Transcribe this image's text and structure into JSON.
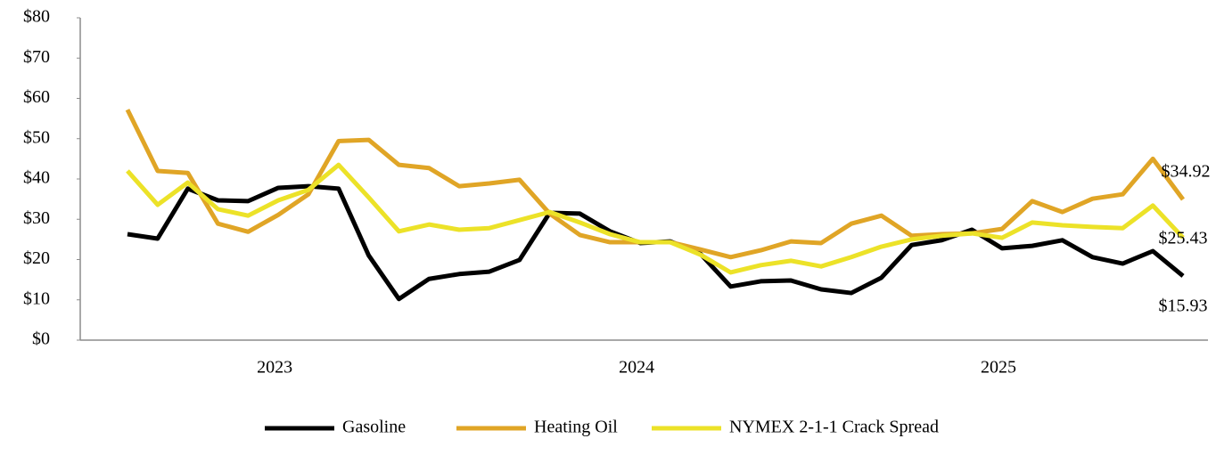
{
  "chart_data": {
    "type": "line",
    "categories": [
      null,
      null,
      null,
      null,
      null,
      "2023",
      null,
      null,
      null,
      null,
      null,
      null,
      null,
      null,
      null,
      null,
      null,
      "2024",
      null,
      null,
      null,
      null,
      null,
      null,
      null,
      null,
      null,
      null,
      null,
      "2025",
      null,
      null,
      null,
      null,
      null,
      null
    ],
    "ylim": [
      0,
      80
    ],
    "yticks": [
      {
        "value": 0,
        "label": "$0"
      },
      {
        "value": 10,
        "label": "$10"
      },
      {
        "value": 20,
        "label": "$20"
      },
      {
        "value": 30,
        "label": "$30"
      },
      {
        "value": 40,
        "label": "$40"
      },
      {
        "value": 50,
        "label": "$50"
      },
      {
        "value": 60,
        "label": "$60"
      },
      {
        "value": 70,
        "label": "$70"
      },
      {
        "value": 80,
        "label": "$80"
      }
    ],
    "grid": false,
    "legend": "bottom",
    "series": [
      {
        "name": "Gasoline",
        "color": "#000000",
        "values": [
          26.3,
          25.2,
          37.6,
          34.7,
          34.5,
          37.8,
          38.2,
          37.6,
          21.0,
          10.2,
          15.2,
          16.4,
          17.0,
          19.9,
          31.6,
          31.4,
          27.0,
          24.1,
          24.5,
          21.4,
          13.3,
          14.6,
          14.8,
          12.6,
          11.7,
          15.5,
          23.6,
          24.8,
          27.4,
          22.8,
          23.4,
          24.8,
          20.6,
          19.0,
          22.1,
          15.93
        ],
        "value_labels": [
          null,
          null,
          null,
          null,
          null,
          null,
          null,
          null,
          null,
          null,
          null,
          null,
          null,
          null,
          null,
          null,
          null,
          null,
          null,
          null,
          null,
          null,
          null,
          null,
          null,
          null,
          null,
          null,
          null,
          null,
          null,
          null,
          null,
          null,
          null,
          "$15.93"
        ]
      },
      {
        "name": "Heating Oil",
        "color": "#e0a526",
        "values": [
          57.2,
          42.0,
          41.5,
          28.9,
          26.9,
          31.1,
          36.2,
          49.4,
          49.7,
          43.5,
          42.7,
          38.2,
          38.9,
          39.8,
          31.4,
          26.1,
          24.3,
          24.3,
          24.3,
          22.5,
          20.6,
          22.3,
          24.5,
          24.1,
          28.9,
          30.9,
          25.9,
          26.3,
          26.5,
          27.6,
          34.5,
          31.8,
          35.1,
          36.2,
          45.0,
          34.92
        ],
        "value_labels": [
          null,
          null,
          null,
          null,
          null,
          null,
          null,
          null,
          null,
          null,
          null,
          null,
          null,
          null,
          null,
          null,
          null,
          null,
          null,
          null,
          null,
          null,
          null,
          null,
          null,
          null,
          null,
          null,
          null,
          null,
          null,
          null,
          null,
          null,
          null,
          "$34.92"
        ]
      },
      {
        "name": "NYMEX 2-1-1 Crack Spread",
        "color": "#ece228",
        "values": [
          42.0,
          33.6,
          39.1,
          32.5,
          30.9,
          34.7,
          37.3,
          43.5,
          35.4,
          27.0,
          28.7,
          27.4,
          27.8,
          29.8,
          31.8,
          29.2,
          26.3,
          24.3,
          24.3,
          21.2,
          16.8,
          18.6,
          19.7,
          18.3,
          20.6,
          23.2,
          25.0,
          25.9,
          26.5,
          25.4,
          29.2,
          28.5,
          28.1,
          27.8,
          33.4,
          25.43
        ],
        "value_labels": [
          null,
          null,
          null,
          null,
          null,
          null,
          null,
          null,
          null,
          null,
          null,
          null,
          null,
          null,
          null,
          null,
          null,
          null,
          null,
          null,
          null,
          null,
          null,
          null,
          null,
          null,
          null,
          null,
          null,
          null,
          null,
          null,
          null,
          null,
          null,
          "$25.43"
        ]
      }
    ]
  }
}
